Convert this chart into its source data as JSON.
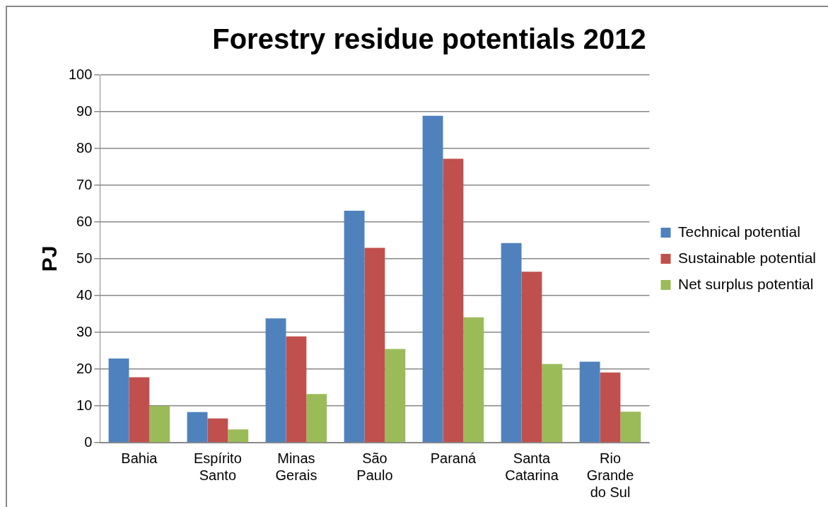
{
  "chart_data": {
    "type": "bar",
    "title": "Forestry residue potentials 2012",
    "ylabel": "PJ",
    "categories": [
      "Bahia",
      "Espírito Santo",
      "Minas Gerais",
      "São Paulo",
      "Paraná",
      "Santa Catarina",
      "Rio Grande do Sul"
    ],
    "series": [
      {
        "name": "Technical potential",
        "color": "#4f81bd",
        "values": [
          22.9,
          8.3,
          33.8,
          63.1,
          88.9,
          54.3,
          22.0
        ]
      },
      {
        "name": "Sustainable potential",
        "color": "#c0504d",
        "values": [
          17.8,
          6.6,
          28.9,
          53.0,
          77.2,
          46.5,
          19.1
        ]
      },
      {
        "name": "Net surplus potential",
        "color": "#9bbb59",
        "values": [
          10.0,
          3.6,
          13.2,
          25.5,
          34.1,
          21.4,
          8.4
        ]
      }
    ],
    "ylim": [
      0,
      100
    ],
    "yticks": [
      0,
      10,
      20,
      30,
      40,
      50,
      60,
      70,
      80,
      90,
      100
    ],
    "grid": "y",
    "legend": "right"
  }
}
